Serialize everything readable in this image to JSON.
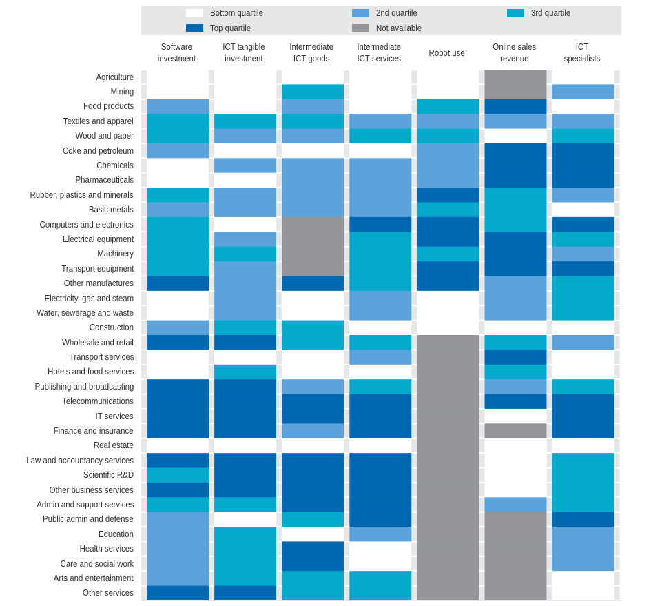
{
  "chart_data": {
    "type": "heatmap",
    "title": "",
    "legend": {
      "placement": "top",
      "items": [
        {
          "key": "bottom",
          "label": "Bottom quartile",
          "color": "#ffffff"
        },
        {
          "key": "q2",
          "label": "2nd quartile",
          "color": "#5ba3da"
        },
        {
          "key": "q3",
          "label": "3rd quartile",
          "color": "#05a9cc"
        },
        {
          "key": "top",
          "label": "Top quartile",
          "color": "#0169b4"
        },
        {
          "key": "na",
          "label": "Not available",
          "color": "#939598"
        }
      ]
    },
    "columns": [
      "Software investment",
      "ICT tangible investment",
      "Intermediate ICT goods",
      "Intermediate ICT services",
      "Robot use",
      "Online sales revenue",
      "ICT specialists"
    ],
    "column_header_lines": [
      [
        "Software",
        "investment"
      ],
      [
        "ICT tangible",
        "investment"
      ],
      [
        "Intermediate",
        "ICT goods"
      ],
      [
        "Intermediate",
        "ICT services"
      ],
      [
        "Robot use"
      ],
      [
        "Online sales",
        "revenue"
      ],
      [
        "ICT",
        "specialists"
      ]
    ],
    "rows": [
      "Agriculture",
      "Mining",
      "Food products",
      "Textiles and apparel",
      "Wood and paper",
      "Coke and petroleum",
      "Chemicals",
      "Pharmaceuticals",
      "Rubber, plastics and minerals",
      "Basic metals",
      "Computers and electronics",
      "Electrical equipment",
      "Machinery",
      "Transport equipment",
      "Other manufactures",
      "Electricity, gas and steam",
      "Water, sewerage and waste",
      "Construction",
      "Wholesale and retail",
      "Transport services",
      "Hotels and food services",
      "Publishing and broadcasting",
      "Telecommunications",
      "IT services",
      "Finance and insurance",
      "Real estate",
      "Law and accountancy services",
      "Scientific R&D",
      "Other business services",
      "Admin and support services",
      "Public admin and defense",
      "Education",
      "Health services",
      "Care and social work",
      "Arts and entertainment",
      "Other services"
    ],
    "values": [
      [
        "bottom",
        "bottom",
        "bottom",
        "bottom",
        "bottom",
        "na",
        "bottom"
      ],
      [
        "bottom",
        "bottom",
        "q3",
        "bottom",
        "bottom",
        "na",
        "q2"
      ],
      [
        "q2",
        "bottom",
        "q2",
        "bottom",
        "q3",
        "top",
        "bottom"
      ],
      [
        "q3",
        "q3",
        "q3",
        "q2",
        "q2",
        "q2",
        "q2"
      ],
      [
        "q3",
        "q2",
        "q2",
        "q3",
        "q3",
        "bottom",
        "q3"
      ],
      [
        "q2",
        "bottom",
        "bottom",
        "bottom",
        "q2",
        "top",
        "top"
      ],
      [
        "bottom",
        "q2",
        "q2",
        "q2",
        "q2",
        "top",
        "top"
      ],
      [
        "bottom",
        "bottom",
        "q2",
        "q2",
        "q2",
        "top",
        "top"
      ],
      [
        "q3",
        "q2",
        "q2",
        "q2",
        "top",
        "q3",
        "q2"
      ],
      [
        "q2",
        "q2",
        "q2",
        "q2",
        "q3",
        "q3",
        "bottom"
      ],
      [
        "q3",
        "bottom",
        "na",
        "top",
        "top",
        "q3",
        "top"
      ],
      [
        "q3",
        "q2",
        "na",
        "q3",
        "top",
        "top",
        "q3"
      ],
      [
        "q3",
        "q3",
        "na",
        "q3",
        "q3",
        "top",
        "q2"
      ],
      [
        "q3",
        "q2",
        "na",
        "q3",
        "top",
        "top",
        "top"
      ],
      [
        "top",
        "q2",
        "top",
        "q3",
        "top",
        "q2",
        "q3"
      ],
      [
        "bottom",
        "q2",
        "bottom",
        "q2",
        "bottom",
        "q2",
        "q3"
      ],
      [
        "bottom",
        "q2",
        "bottom",
        "q2",
        "bottom",
        "q2",
        "q3"
      ],
      [
        "q2",
        "q3",
        "q3",
        "bottom",
        "bottom",
        "bottom",
        "bottom"
      ],
      [
        "top",
        "top",
        "q3",
        "q3",
        "na",
        "q3",
        "q2"
      ],
      [
        "bottom",
        "bottom",
        "bottom",
        "q2",
        "na",
        "top",
        "bottom"
      ],
      [
        "bottom",
        "q3",
        "bottom",
        "bottom",
        "na",
        "q3",
        "bottom"
      ],
      [
        "top",
        "top",
        "q2",
        "q3",
        "na",
        "q2",
        "q3"
      ],
      [
        "top",
        "top",
        "top",
        "top",
        "na",
        "top",
        "top"
      ],
      [
        "top",
        "top",
        "top",
        "top",
        "na",
        "bottom",
        "top"
      ],
      [
        "top",
        "top",
        "q2",
        "top",
        "na",
        "na",
        "top"
      ],
      [
        "bottom",
        "bottom",
        "bottom",
        "bottom",
        "na",
        "bottom",
        "bottom"
      ],
      [
        "top",
        "top",
        "top",
        "top",
        "na",
        "bottom",
        "q3"
      ],
      [
        "q3",
        "top",
        "top",
        "top",
        "na",
        "bottom",
        "q3"
      ],
      [
        "top",
        "top",
        "top",
        "top",
        "na",
        "bottom",
        "q3"
      ],
      [
        "q3",
        "q3",
        "top",
        "top",
        "na",
        "q2",
        "q3"
      ],
      [
        "q2",
        "bottom",
        "q3",
        "top",
        "na",
        "na",
        "top"
      ],
      [
        "q2",
        "q3",
        "bottom",
        "q2",
        "na",
        "na",
        "q2"
      ],
      [
        "q2",
        "q3",
        "top",
        "bottom",
        "na",
        "na",
        "q2"
      ],
      [
        "q2",
        "q3",
        "top",
        "bottom",
        "na",
        "na",
        "q2"
      ],
      [
        "q2",
        "q3",
        "q3",
        "q3",
        "na",
        "na",
        "bottom"
      ],
      [
        "top",
        "top",
        "q3",
        "q3",
        "na",
        "na",
        "bottom"
      ]
    ]
  }
}
